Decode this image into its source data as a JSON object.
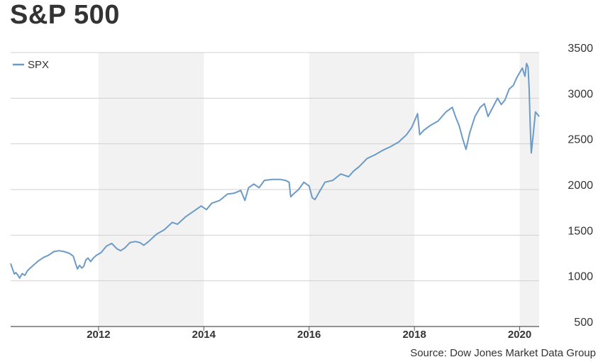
{
  "title": "S&P 500",
  "source": "Source: Dow Jones Market Data Group",
  "colors": {
    "line": "#6b9bc8",
    "band": "#f2f2f2",
    "grid": "#d0d0d0",
    "text": "#333333"
  },
  "chart_data": {
    "type": "line",
    "title": "S&P 500",
    "xlabel": "",
    "ylabel": "",
    "ylim": [
      350,
      3500
    ],
    "xlim": [
      2010.33,
      2020.37
    ],
    "yticks": [
      500,
      1000,
      1500,
      2000,
      2500,
      3000,
      3500
    ],
    "xticks": [
      2012,
      2014,
      2016,
      2018,
      2020
    ],
    "shaded_bands": [
      [
        2012,
        2014
      ],
      [
        2016,
        2018
      ],
      [
        2020,
        2020.37
      ]
    ],
    "grid": true,
    "legend": {
      "position": "top-left",
      "entries": [
        "SPX"
      ]
    },
    "series": [
      {
        "name": "SPX",
        "x": [
          2010.33,
          2010.36,
          2010.4,
          2010.43,
          2010.47,
          2010.5,
          2010.55,
          2010.6,
          2010.65,
          2010.7,
          2010.78,
          2010.86,
          2010.95,
          2011.05,
          2011.15,
          2011.25,
          2011.35,
          2011.45,
          2011.52,
          2011.57,
          2011.6,
          2011.64,
          2011.68,
          2011.72,
          2011.76,
          2011.8,
          2011.85,
          2011.9,
          2011.96,
          2012.05,
          2012.15,
          2012.25,
          2012.35,
          2012.42,
          2012.5,
          2012.6,
          2012.7,
          2012.78,
          2012.86,
          2012.95,
          2013.1,
          2013.25,
          2013.4,
          2013.5,
          2013.65,
          2013.8,
          2013.95,
          2014.05,
          2014.15,
          2014.3,
          2014.45,
          2014.58,
          2014.7,
          2014.78,
          2014.85,
          2014.95,
          2015.05,
          2015.15,
          2015.3,
          2015.45,
          2015.55,
          2015.62,
          2015.65,
          2015.7,
          2015.8,
          2015.9,
          2016.0,
          2016.06,
          2016.11,
          2016.18,
          2016.3,
          2016.45,
          2016.6,
          2016.75,
          2016.84,
          2016.95,
          2017.1,
          2017.25,
          2017.4,
          2017.55,
          2017.7,
          2017.85,
          2017.95,
          2018.06,
          2018.1,
          2018.18,
          2018.3,
          2018.45,
          2018.6,
          2018.72,
          2018.78,
          2018.85,
          2018.92,
          2018.98,
          2019.05,
          2019.15,
          2019.25,
          2019.33,
          2019.4,
          2019.48,
          2019.58,
          2019.65,
          2019.72,
          2019.8,
          2019.88,
          2019.95,
          2020.05,
          2020.1,
          2020.13,
          2020.16,
          2020.18,
          2020.2,
          2020.22,
          2020.25,
          2020.3,
          2020.37
        ],
        "values": [
          1190,
          1140,
          1075,
          1090,
          1060,
          1030,
          1080,
          1060,
          1110,
          1140,
          1180,
          1220,
          1255,
          1280,
          1320,
          1330,
          1320,
          1300,
          1270,
          1180,
          1130,
          1170,
          1140,
          1160,
          1230,
          1250,
          1210,
          1250,
          1280,
          1310,
          1380,
          1410,
          1350,
          1330,
          1360,
          1420,
          1430,
          1420,
          1390,
          1430,
          1510,
          1560,
          1640,
          1620,
          1700,
          1760,
          1820,
          1780,
          1850,
          1880,
          1950,
          1960,
          1990,
          1880,
          2020,
          2060,
          2020,
          2100,
          2110,
          2110,
          2100,
          2080,
          1920,
          1950,
          2000,
          2080,
          2040,
          1910,
          1890,
          1960,
          2080,
          2100,
          2170,
          2140,
          2200,
          2250,
          2340,
          2380,
          2430,
          2470,
          2520,
          2600,
          2680,
          2830,
          2600,
          2650,
          2700,
          2750,
          2850,
          2900,
          2800,
          2700,
          2550,
          2440,
          2620,
          2800,
          2900,
          2940,
          2800,
          2890,
          3000,
          2930,
          2980,
          3100,
          3140,
          3230,
          3330,
          3240,
          3380,
          3340,
          3100,
          2700,
          2400,
          2560,
          2850,
          2800
        ]
      }
    ]
  },
  "legend_label": "SPX"
}
